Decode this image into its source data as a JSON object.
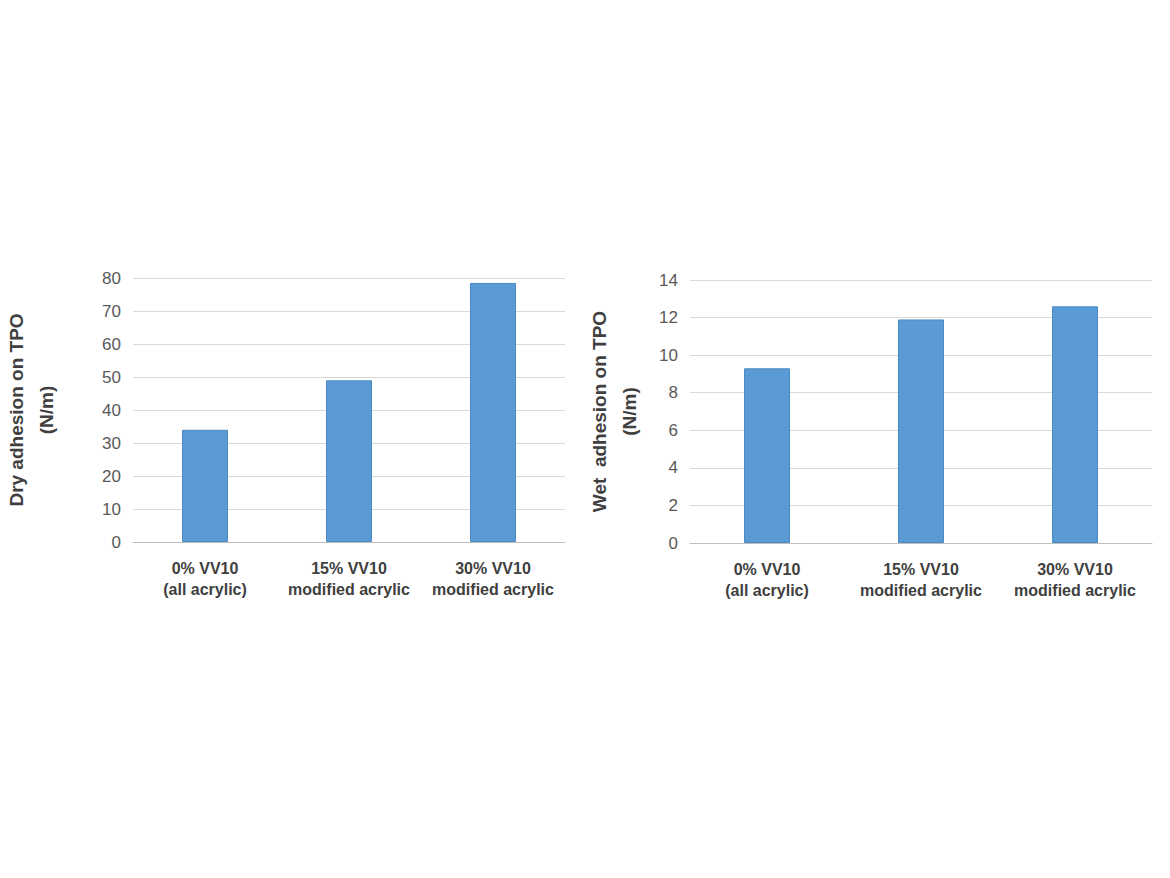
{
  "chart_data": [
    {
      "type": "bar",
      "ylabel": "Dry adhesion on TPO\n(N/m)",
      "categories": [
        "0% VV10\n(all acrylic)",
        "15% VV10\nmodified acrylic",
        "30% VV10\nmodified acrylic"
      ],
      "values": [
        34,
        49,
        78.5
      ],
      "color": "#5b9bd5",
      "ylim": [
        0,
        80
      ],
      "yticks": [
        0,
        10,
        20,
        30,
        40,
        50,
        60,
        70,
        80
      ],
      "grid": true
    },
    {
      "type": "bar",
      "ylabel": "Wet  adhesion on TPO\n(N/m)",
      "categories": [
        "0% VV10\n(all acrylic)",
        "15% VV10\nmodified acrylic",
        "30% VV10\nmodified acrylic"
      ],
      "values": [
        9.3,
        11.9,
        12.6
      ],
      "color": "#5b9bd5",
      "ylim": [
        0,
        14
      ],
      "yticks": [
        0,
        2,
        4,
        6,
        8,
        10,
        12,
        14
      ],
      "grid": true
    }
  ]
}
